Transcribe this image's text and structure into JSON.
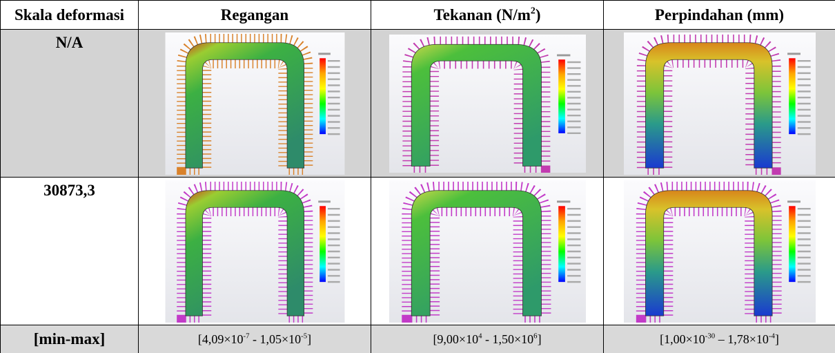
{
  "table": {
    "header": [
      [
        "Skala deformasi"
      ],
      [
        "Regangan"
      ],
      [
        "Tekanan (N/m",
        "2",
        ")"
      ],
      [
        "Perpindahan (mm)"
      ]
    ],
    "rows": [
      "N/A",
      "30873,3"
    ],
    "footer": [
      [
        "[min-max]"
      ],
      [
        "[4,09×10",
        "-7",
        " - 1,05×10",
        "-5",
        "]"
      ],
      [
        "[9,00×10",
        "4",
        " - 1,50×10",
        "6",
        "]"
      ],
      [
        "[1,00×10",
        "-30",
        " – 1,78×10",
        "-4",
        "]"
      ]
    ]
  }
}
